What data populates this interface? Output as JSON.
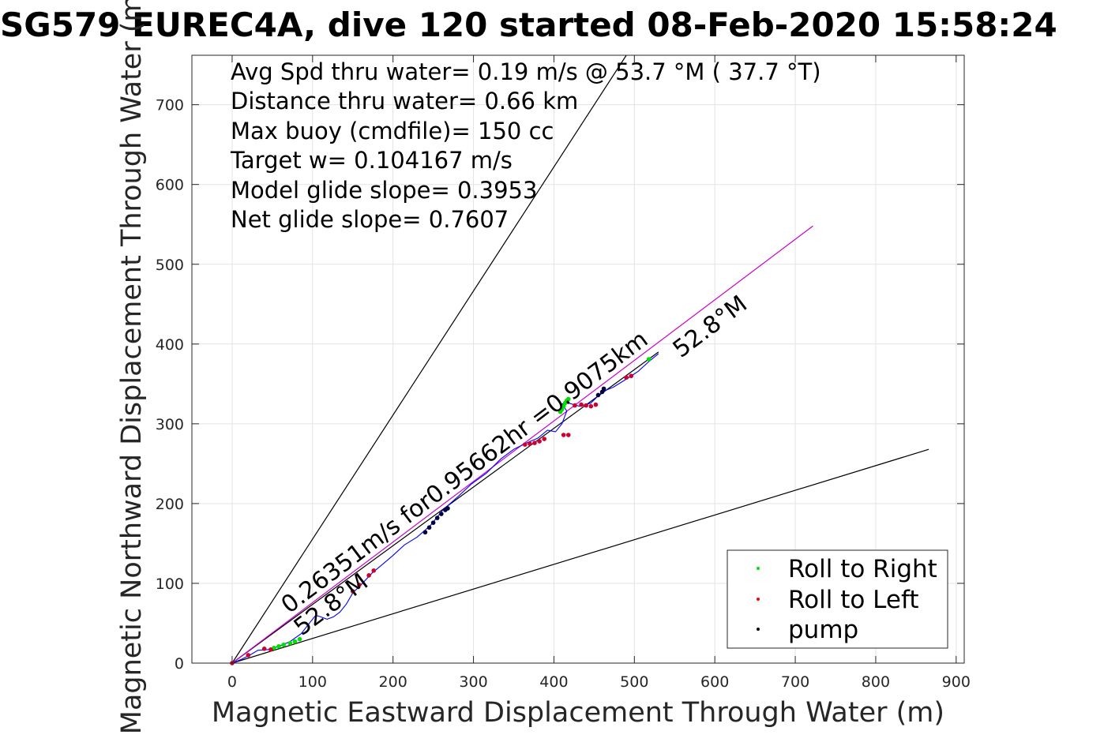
{
  "chart_data": {
    "type": "line",
    "title": "SG579 EUREC4A, dive 120 started 08-Feb-2020 15:58:24",
    "xlabel": "Magnetic Eastward Displacement Through Water (m)",
    "ylabel": "Magnetic Northward Displacement Through Water (m)",
    "xlim": [
      -50,
      910
    ],
    "ylim": [
      0,
      762
    ],
    "xticks": [
      0,
      100,
      200,
      300,
      400,
      500,
      600,
      700,
      800,
      900
    ],
    "yticks": [
      0,
      100,
      200,
      300,
      400,
      500,
      600,
      700
    ],
    "grid": true,
    "info_lines": [
      "Avg Spd thru water=  0.19 m/s @  53.7 °M ( 37.7 °T)",
      "Distance thru water=  0.66 km",
      "Max buoy (cmdfile)= 150 cc",
      "Target w= 0.104167 m/s",
      "Model glide slope= 0.3953",
      "Net glide slope= 0.7607"
    ],
    "annotations": {
      "segment_label": "0.26351m/s for0.95662hr =0.9075km",
      "heading_start": "52.8°M",
      "heading_end": "52.8°M"
    },
    "legend": {
      "placement": "bottom-right",
      "entries": [
        {
          "label": "Roll to Right",
          "color": "#00e000"
        },
        {
          "label": "Roll to Left",
          "color": "#ff0000"
        },
        {
          "label": "pump",
          "color": "#000000"
        }
      ]
    },
    "reference_lines": [
      {
        "name": "upper-bound",
        "color": "#000000",
        "x": [
          0,
          490
        ],
        "y": [
          0,
          762
        ]
      },
      {
        "name": "lower-bound",
        "color": "#000000",
        "x": [
          0,
          866
        ],
        "y": [
          0,
          268
        ]
      },
      {
        "name": "heading-line",
        "color": "#000000",
        "x": [
          0,
          530
        ],
        "y": [
          0,
          390
        ]
      },
      {
        "name": "magenta-heading",
        "color": "#cc00cc",
        "x": [
          0,
          722
        ],
        "y": [
          0,
          548
        ]
      }
    ],
    "series": [
      {
        "type": "line",
        "color": "#0000ff",
        "x": [
          0,
          12,
          22,
          32,
          45,
          58,
          72,
          86,
          96,
          104,
          110,
          118,
          126,
          134,
          142,
          150,
          162,
          174,
          186,
          200,
          214,
          230,
          246,
          262,
          280,
          298,
          316,
          334,
          350,
          366,
          380,
          392,
          402,
          410,
          416,
          410,
          418,
          432,
          446,
          460,
          474,
          490,
          505,
          518,
          530
        ],
        "y": [
          0,
          5,
          10,
          16,
          17,
          21,
          27,
          37,
          50,
          60,
          58,
          55,
          58,
          64,
          74,
          88,
          100,
          113,
          123,
          135,
          148,
          158,
          172,
          192,
          208,
          225,
          238,
          256,
          268,
          276,
          282,
          292,
          290,
          300,
          316,
          325,
          326,
          322,
          326,
          340,
          346,
          356,
          366,
          378,
          388
        ]
      },
      {
        "type": "scatter",
        "color": "#00e000",
        "marker_series": "Roll to Right",
        "x": [
          52,
          58,
          64,
          72,
          78,
          84,
          408,
          410,
          412,
          414,
          416,
          418,
          518
        ],
        "y": [
          19,
          21,
          23,
          25,
          27,
          30,
          315,
          318,
          322,
          326,
          329,
          331,
          381
        ]
      },
      {
        "type": "scatter",
        "color": "#cc0033",
        "marker_series": "Roll to Left",
        "x": [
          0,
          20,
          40,
          48,
          150,
          158,
          170,
          176,
          364,
          370,
          376,
          382,
          388,
          412,
          418,
          426,
          434,
          440,
          446,
          452,
          490,
          496
        ],
        "y": [
          0,
          10,
          18,
          17,
          90,
          98,
          110,
          116,
          274,
          275,
          276,
          278,
          281,
          286,
          286,
          323,
          324,
          323,
          322,
          324,
          358,
          360
        ]
      },
      {
        "type": "scatter",
        "color": "#000040",
        "marker_series": "pump",
        "x": [
          240,
          245,
          250,
          255,
          260,
          265,
          268,
          455,
          460,
          462
        ],
        "y": [
          164,
          170,
          176,
          182,
          187,
          192,
          194,
          336,
          340,
          344
        ]
      }
    ]
  }
}
